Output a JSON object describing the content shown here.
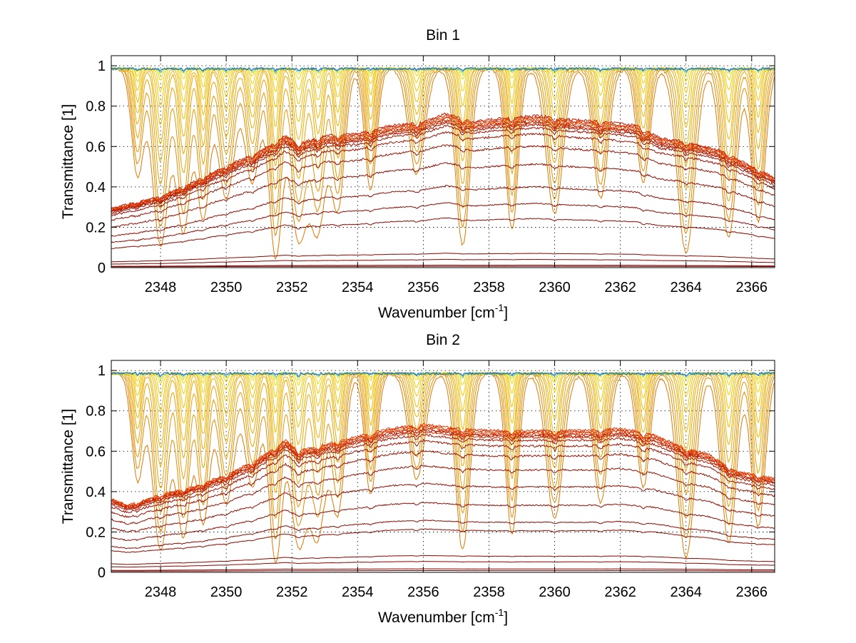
{
  "chart_data": [
    {
      "type": "line",
      "title": "Bin 1",
      "xlabel": "Wavenumber [cm",
      "xlabel_sup": "-1",
      "xlabel_end": "]",
      "ylabel": "Transmittance [1]",
      "xlim": [
        2346.5,
        2366.7
      ],
      "ylim": [
        0,
        1.05
      ],
      "xticks": [
        2348,
        2350,
        2352,
        2354,
        2356,
        2358,
        2360,
        2362,
        2364,
        2366
      ],
      "yticks": [
        0,
        0.2,
        0.4,
        0.6,
        0.8,
        1
      ],
      "ytick_labels": [
        "0",
        "0.2",
        "0.4",
        "0.6",
        "0.8",
        "1"
      ],
      "grid": true,
      "absorption_lines": [
        2347.3,
        2348.0,
        2348.7,
        2349.3,
        2350.0,
        2350.8,
        2351.5,
        2352.2,
        2352.8,
        2353.4,
        2354.4,
        2355.8,
        2357.2,
        2358.7,
        2360.0,
        2361.4,
        2362.7,
        2364.0,
        2365.3,
        2366.2
      ],
      "envelope_x": [
        2346.5,
        2347.0,
        2348.0,
        2349.0,
        2350.0,
        2351.0,
        2351.8,
        2352.2,
        2353.0,
        2354.0,
        2355.0,
        2356.0,
        2356.7,
        2357.5,
        2358.5,
        2359.5,
        2360.5,
        2361.5,
        2362.5,
        2363.2,
        2364.0,
        2365.0,
        2366.0,
        2366.7
      ],
      "envelope_y": [
        0.29,
        0.31,
        0.35,
        0.42,
        0.5,
        0.57,
        0.65,
        0.61,
        0.65,
        0.66,
        0.7,
        0.72,
        0.76,
        0.72,
        0.74,
        0.75,
        0.73,
        0.72,
        0.7,
        0.64,
        0.62,
        0.58,
        0.5,
        0.44
      ],
      "series": [
        {
          "scale": 1.0,
          "color": "#c81e00"
        },
        {
          "scale": 0.99,
          "color": "#d42a00"
        },
        {
          "scale": 0.98,
          "color": "#de3800"
        },
        {
          "scale": 0.97,
          "color": "#e84500"
        },
        {
          "scale": 0.96,
          "color": "#b41800"
        },
        {
          "scale": 0.95,
          "color": "#d03000"
        },
        {
          "scale": 0.94,
          "color": "#a81400"
        },
        {
          "scale": 0.92,
          "color": "#a01000"
        },
        {
          "scale": 0.88,
          "color": "#9a1000"
        },
        {
          "scale": 0.8,
          "color": "#941000"
        },
        {
          "scale": 0.68,
          "color": "#900e00"
        },
        {
          "scale": 0.53,
          "color": "#8e0c00"
        },
        {
          "scale": 0.42,
          "color": "#8c0a00"
        },
        {
          "scale": 0.32,
          "color": "#8a0a00"
        },
        {
          "scale": 0.09,
          "color": "#880800"
        },
        {
          "scale": 0.05,
          "color": "#860600"
        },
        {
          "scale": 0.012,
          "color": "#840400"
        },
        {
          "scale": 0.005,
          "color": "#820200"
        }
      ],
      "absorption_series": [
        {
          "depth": 0.95,
          "width": 0.32,
          "color": "#e07800"
        },
        {
          "depth": 0.85,
          "width": 0.28,
          "color": "#e48a00"
        },
        {
          "depth": 0.75,
          "width": 0.25,
          "color": "#e89600"
        },
        {
          "depth": 0.62,
          "width": 0.22,
          "color": "#eca000"
        },
        {
          "depth": 0.5,
          "width": 0.19,
          "color": "#eea800"
        },
        {
          "depth": 0.4,
          "width": 0.17,
          "color": "#f0b000"
        },
        {
          "depth": 0.3,
          "width": 0.14,
          "color": "#f2ba00"
        },
        {
          "depth": 0.2,
          "width": 0.12,
          "color": "#f4c200"
        },
        {
          "depth": 0.12,
          "width": 0.1,
          "color": "#f6cc00"
        },
        {
          "depth": 0.06,
          "width": 0.08,
          "color": "#f2d800"
        },
        {
          "depth": 0.03,
          "width": 0.06,
          "color": "#c8e020"
        },
        {
          "depth": 0.015,
          "width": 0.05,
          "color": "#40c8d0"
        },
        {
          "depth": 0.01,
          "width": 0.04,
          "color": "#2060c0"
        }
      ]
    },
    {
      "type": "line",
      "title": "Bin 2",
      "xlabel": "Wavenumber [cm",
      "xlabel_sup": "-1",
      "xlabel_end": "]",
      "ylabel": "Transmittance [1]",
      "xlim": [
        2346.5,
        2366.7
      ],
      "ylim": [
        0,
        1.05
      ],
      "xticks": [
        2348,
        2350,
        2352,
        2354,
        2356,
        2358,
        2360,
        2362,
        2364,
        2366
      ],
      "yticks": [
        0,
        0.2,
        0.4,
        0.6,
        0.8,
        1
      ],
      "ytick_labels": [
        "0",
        "0.2",
        "0.4",
        "0.6",
        "0.8",
        "1"
      ],
      "grid": true,
      "absorption_lines": [
        2347.3,
        2348.0,
        2348.7,
        2349.3,
        2350.0,
        2350.8,
        2351.5,
        2352.2,
        2352.8,
        2353.4,
        2354.4,
        2355.8,
        2357.2,
        2358.7,
        2360.0,
        2361.4,
        2362.7,
        2364.0,
        2365.3,
        2366.2
      ],
      "envelope_x": [
        2346.5,
        2347.0,
        2348.0,
        2349.0,
        2350.0,
        2351.0,
        2351.8,
        2352.2,
        2353.0,
        2354.0,
        2355.0,
        2356.0,
        2357.0,
        2358.0,
        2359.0,
        2360.0,
        2361.0,
        2362.0,
        2363.0,
        2364.0,
        2364.7,
        2365.5,
        2366.7
      ],
      "envelope_y": [
        0.36,
        0.33,
        0.38,
        0.42,
        0.48,
        0.56,
        0.65,
        0.6,
        0.63,
        0.67,
        0.71,
        0.73,
        0.71,
        0.7,
        0.7,
        0.7,
        0.7,
        0.71,
        0.68,
        0.61,
        0.58,
        0.5,
        0.46
      ],
      "series": [
        {
          "scale": 1.0,
          "color": "#e83800"
        },
        {
          "scale": 0.99,
          "color": "#d42a00"
        },
        {
          "scale": 0.98,
          "color": "#f04800"
        },
        {
          "scale": 0.97,
          "color": "#c81e00"
        },
        {
          "scale": 0.96,
          "color": "#b41800"
        },
        {
          "scale": 0.95,
          "color": "#d03000"
        },
        {
          "scale": 0.93,
          "color": "#a81400"
        },
        {
          "scale": 0.89,
          "color": "#a01000"
        },
        {
          "scale": 0.82,
          "color": "#9a1000"
        },
        {
          "scale": 0.72,
          "color": "#941000"
        },
        {
          "scale": 0.6,
          "color": "#900e00"
        },
        {
          "scale": 0.47,
          "color": "#8e0c00"
        },
        {
          "scale": 0.35,
          "color": "#8c0a00"
        },
        {
          "scale": 0.29,
          "color": "#8a0a00"
        },
        {
          "scale": 0.11,
          "color": "#880800"
        },
        {
          "scale": 0.07,
          "color": "#860600"
        },
        {
          "scale": 0.02,
          "color": "#840400"
        },
        {
          "scale": 0.008,
          "color": "#820200"
        }
      ],
      "absorption_series": [
        {
          "depth": 0.95,
          "width": 0.32,
          "color": "#e07800"
        },
        {
          "depth": 0.85,
          "width": 0.28,
          "color": "#e48a00"
        },
        {
          "depth": 0.75,
          "width": 0.25,
          "color": "#e89600"
        },
        {
          "depth": 0.62,
          "width": 0.22,
          "color": "#eca000"
        },
        {
          "depth": 0.5,
          "width": 0.19,
          "color": "#eea800"
        },
        {
          "depth": 0.4,
          "width": 0.17,
          "color": "#f0b000"
        },
        {
          "depth": 0.3,
          "width": 0.14,
          "color": "#f2ba00"
        },
        {
          "depth": 0.2,
          "width": 0.12,
          "color": "#f4c200"
        },
        {
          "depth": 0.12,
          "width": 0.1,
          "color": "#f6cc00"
        },
        {
          "depth": 0.06,
          "width": 0.08,
          "color": "#f2d800"
        },
        {
          "depth": 0.03,
          "width": 0.06,
          "color": "#c8e020"
        },
        {
          "depth": 0.015,
          "width": 0.05,
          "color": "#40c8d0"
        },
        {
          "depth": 0.01,
          "width": 0.04,
          "color": "#2060c0"
        }
      ]
    }
  ]
}
